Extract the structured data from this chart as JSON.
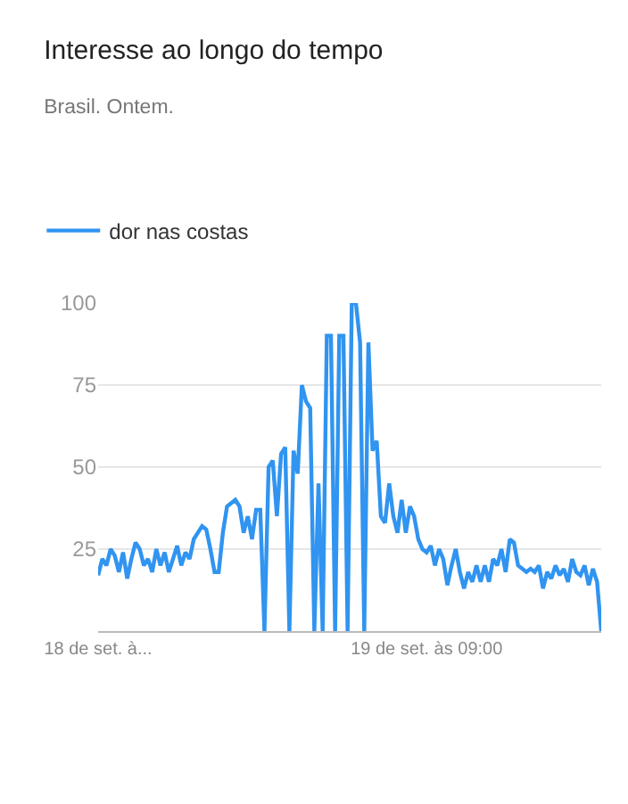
{
  "chart_data": {
    "type": "line",
    "title": "Interesse ao longo do tempo",
    "subtitle": "Brasil. Ontem.",
    "categories": [
      "18 de set. à...",
      null,
      null,
      null,
      null,
      null,
      null,
      null,
      null,
      null,
      null,
      null,
      null,
      null,
      null,
      null,
      null,
      null,
      null,
      null,
      null,
      null,
      null,
      null,
      null,
      null,
      null,
      null,
      null,
      null,
      null,
      null,
      null,
      null,
      null,
      null,
      null,
      null,
      null,
      null,
      null,
      null,
      null,
      null,
      null,
      null,
      null,
      null,
      null,
      null,
      null,
      null,
      null,
      null,
      null,
      null,
      null,
      null,
      null,
      null,
      null,
      null,
      null,
      null,
      null,
      null,
      null,
      null,
      null,
      null,
      null,
      null,
      null,
      null,
      null,
      null,
      null,
      null,
      null,
      "19 de set. às 09:00",
      null,
      null,
      null,
      null,
      null,
      null,
      null,
      null,
      null,
      null,
      null,
      null,
      null,
      null,
      null,
      null,
      null,
      null,
      null,
      null,
      null,
      null,
      null,
      null,
      null,
      null,
      null,
      null,
      null,
      null,
      null,
      null,
      null,
      null,
      null,
      null,
      null,
      null,
      null,
      null,
      null,
      null
    ],
    "series": [
      {
        "name": "dor nas costas",
        "color": "#3094f0",
        "values": [
          17,
          22,
          20,
          25,
          23,
          18,
          24,
          16,
          22,
          27,
          25,
          20,
          22,
          18,
          25,
          20,
          24,
          18,
          22,
          26,
          20,
          24,
          22,
          28,
          30,
          32,
          31,
          25,
          18,
          18,
          30,
          38,
          39,
          40,
          38,
          30,
          35,
          28,
          37,
          37,
          0,
          50,
          52,
          35,
          54,
          56,
          0,
          55,
          48,
          75,
          70,
          68,
          0,
          45,
          0,
          90,
          90,
          0,
          90,
          90,
          0,
          100,
          100,
          88,
          0,
          88,
          55,
          58,
          35,
          33,
          45,
          35,
          30,
          40,
          30,
          38,
          35,
          28,
          25,
          24,
          26,
          20,
          25,
          22,
          14,
          20,
          25,
          18,
          13,
          18,
          15,
          20,
          15,
          20,
          15,
          22,
          20,
          25,
          18,
          28,
          27,
          20,
          19,
          18,
          19,
          18,
          20,
          13,
          18,
          16,
          20,
          17,
          19,
          15,
          22,
          18,
          17,
          20,
          14,
          19,
          15,
          0
        ]
      }
    ],
    "ylim": [
      0,
      100
    ],
    "yticks": [
      25,
      50,
      75,
      100
    ],
    "grid": "y",
    "legend": "top left",
    "marker": "none",
    "line_style": "solid"
  }
}
